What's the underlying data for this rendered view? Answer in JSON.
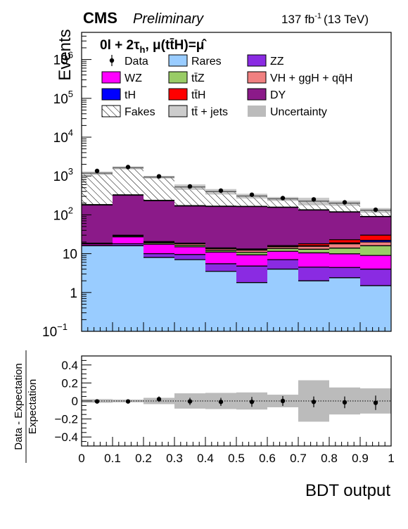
{
  "header": {
    "experiment": "CMS",
    "status": "Preliminary",
    "lumi": "137 fb",
    "lumi_exp": "-1",
    "energy": "(13 TeV)"
  },
  "category": {
    "part1": "0l + 2τ",
    "part1_sub": "h",
    "part2": ",  μ(tt̄H)=μ̂"
  },
  "legend": {
    "entries": [
      {
        "key": "data",
        "label": "Data",
        "style": "marker"
      },
      {
        "key": "rares",
        "label": "Rares",
        "style": "fill",
        "color": "#99ccff"
      },
      {
        "key": "zz",
        "label": "ZZ",
        "style": "fill",
        "color": "#8a2be2"
      },
      {
        "key": "wz",
        "label": "WZ",
        "style": "fill",
        "color": "#ff00ff"
      },
      {
        "key": "ttz",
        "label": "tt̄Z",
        "style": "fill",
        "color": "#99cc66"
      },
      {
        "key": "vh",
        "label": "VH + ggH + qq̄H",
        "style": "fill",
        "color": "#f08080"
      },
      {
        "key": "th",
        "label": "tH",
        "style": "fill",
        "color": "#0000ff"
      },
      {
        "key": "tth",
        "label": "tt̄H",
        "style": "fill",
        "color": "#ff0000"
      },
      {
        "key": "dy",
        "label": "DY",
        "style": "fill",
        "color": "#8b1a89"
      },
      {
        "key": "fakes",
        "label": "Fakes",
        "style": "hatch"
      },
      {
        "key": "ttjets",
        "label": "tt̄ + jets",
        "style": "fill",
        "color": "#cccccc"
      },
      {
        "key": "unc",
        "label": "Uncertainty",
        "style": "fill",
        "color": "#bbbbbb"
      }
    ]
  },
  "chart_data": [
    {
      "type": "bar",
      "stacked": true,
      "log_y": true,
      "ylabel": "Events",
      "xlim": [
        0,
        1
      ],
      "ylim": [
        0.1,
        5000000
      ],
      "y_ticks": [
        {
          "value": 0.1,
          "base": "10",
          "exp": "−1"
        },
        {
          "value": 1,
          "base": "1",
          "exp": ""
        },
        {
          "value": 10,
          "base": "10",
          "exp": ""
        },
        {
          "value": 100,
          "base": "10",
          "exp": "2"
        },
        {
          "value": 1000,
          "base": "10",
          "exp": "3"
        },
        {
          "value": 10000,
          "base": "10",
          "exp": "4"
        },
        {
          "value": 100000,
          "base": "10",
          "exp": "5"
        },
        {
          "value": 1000000,
          "base": "10",
          "exp": "6"
        }
      ],
      "bin_edges": [
        0,
        0.1,
        0.2,
        0.3,
        0.4,
        0.5,
        0.6,
        0.7,
        0.8,
        0.9,
        1.0
      ],
      "series": [
        {
          "key": "rares",
          "color": "#99ccff",
          "values": [
            16,
            16,
            8,
            7,
            3.5,
            1.8,
            4,
            2,
            2.4,
            1.5
          ]
        },
        {
          "key": "zz",
          "color": "#8a2be2",
          "values": [
            0.2,
            2,
            2,
            2.5,
            2,
            3,
            3,
            2.5,
            2,
            2.5
          ]
        },
        {
          "key": "wz",
          "color": "#ff00ff",
          "values": [
            1.5,
            9,
            7.5,
            5.5,
            5.5,
            4.5,
            4.5,
            6,
            5.5,
            5
          ]
        },
        {
          "key": "ttz",
          "color": "#99cc66",
          "values": [
            0.3,
            1.5,
            1.5,
            1.5,
            1.2,
            1.5,
            2,
            2.5,
            4,
            7
          ]
        },
        {
          "key": "vh",
          "color": "#f08080",
          "values": [
            0.4,
            1,
            1,
            1.5,
            1.2,
            1.5,
            1.5,
            2.5,
            4,
            4
          ]
        },
        {
          "key": "th",
          "color": "#0000ff",
          "values": [
            0.05,
            0.1,
            0.1,
            0.2,
            0.2,
            0.3,
            0.3,
            0.5,
            1,
            2
          ]
        },
        {
          "key": "tth",
          "color": "#ff0000",
          "values": [
            0.1,
            0.3,
            0.4,
            0.5,
            0.5,
            0.6,
            0.8,
            2,
            4,
            8
          ]
        },
        {
          "key": "dy",
          "color": "#8b1a89",
          "values": [
            160,
            290,
            210,
            150,
            150,
            150,
            140,
            115,
            95,
            60
          ]
        },
        {
          "key": "ttjets",
          "color": "#cccccc",
          "values": [
            5,
            8,
            6,
            4,
            3,
            2.5,
            2,
            2,
            2,
            1
          ]
        },
        {
          "key": "fakes",
          "color": "hatch",
          "values": [
            1000,
            1300,
            700,
            350,
            230,
            140,
            100,
            90,
            80,
            40
          ]
        }
      ],
      "total_uncertainty": [
        0.1,
        0.09,
        0.08,
        0.16,
        0.16,
        0.14,
        0.12,
        0.22,
        0.15,
        0.14
      ],
      "data": {
        "x": [
          0.05,
          0.15,
          0.25,
          0.35,
          0.45,
          0.55,
          0.65,
          0.75,
          0.85,
          0.95
        ],
        "y": [
          1350,
          1700,
          980,
          540,
          420,
          330,
          270,
          250,
          210,
          135
        ]
      }
    },
    {
      "type": "bar",
      "xlabel": "BDT output",
      "ylabel_num": "Data - Expectation",
      "ylabel_den": "Expectation",
      "xlim": [
        0,
        1
      ],
      "ylim": [
        -0.5,
        0.5
      ],
      "x_ticks": [
        "0",
        "0.1",
        "0.2",
        "0.3",
        "0.4",
        "0.5",
        "0.6",
        "0.7",
        "0.8",
        "0.9",
        "1"
      ],
      "y_ticks": [
        "−0.4",
        "−0.2",
        "0",
        "0.2",
        "0.4"
      ],
      "uncertainty": [
        0.02,
        0.015,
        0.035,
        0.085,
        0.09,
        0.095,
        0.07,
        0.23,
        0.15,
        0.14
      ],
      "x": [
        0.05,
        0.15,
        0.25,
        0.35,
        0.45,
        0.55,
        0.65,
        0.75,
        0.85,
        0.95
      ],
      "y": [
        -0.005,
        -0.005,
        0.02,
        -0.005,
        -0.01,
        -0.01,
        0.0,
        -0.01,
        -0.015,
        -0.02
      ],
      "yerr": [
        0.02,
        0.02,
        0.03,
        0.04,
        0.045,
        0.055,
        0.055,
        0.06,
        0.065,
        0.08
      ]
    }
  ]
}
